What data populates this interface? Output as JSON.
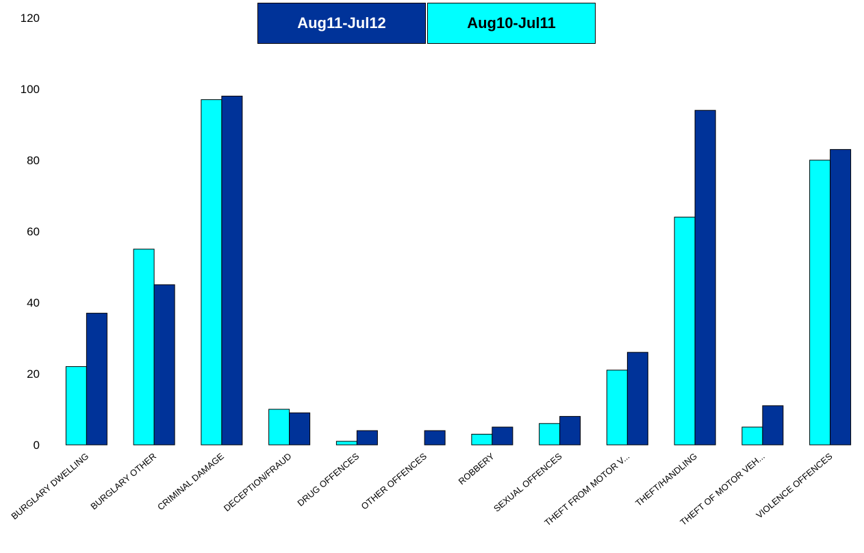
{
  "legend": [
    {
      "label": "Aug11-Jul12",
      "color": "#003399",
      "text_color": "#ffffff"
    },
    {
      "label": "Aug10-Jul11",
      "color": "#00ffff",
      "text_color": "#000000"
    }
  ],
  "chart_data": {
    "type": "bar",
    "title": "",
    "xlabel": "",
    "ylabel": "",
    "ylim": [
      0,
      120
    ],
    "yticks": [
      0,
      20,
      40,
      60,
      80,
      100,
      120
    ],
    "grid": false,
    "legend_position": "top-center",
    "categories": [
      "BURGLARY DWELLING",
      "BURGLARY OTHER",
      "CRIMINAL DAMAGE",
      "DECEPTION/FRAUD",
      "DRUG OFFENCES",
      "OTHER OFFENCES",
      "ROBBERY",
      "SEXUAL OFFENCES",
      "THEFT FROM MOTOR V...",
      "THEFT/HANDLING",
      "THEFT OF MOTOR VEH...",
      "VIOLENCE OFFENCES"
    ],
    "series": [
      {
        "name": "Aug10-Jul11",
        "color": "#00ffff",
        "values": [
          22,
          55,
          97,
          10,
          1,
          0,
          3,
          6,
          21,
          64,
          5,
          80
        ]
      },
      {
        "name": "Aug11-Jul12",
        "color": "#003399",
        "values": [
          37,
          45,
          98,
          9,
          4,
          4,
          5,
          8,
          26,
          94,
          11,
          83
        ]
      }
    ]
  }
}
